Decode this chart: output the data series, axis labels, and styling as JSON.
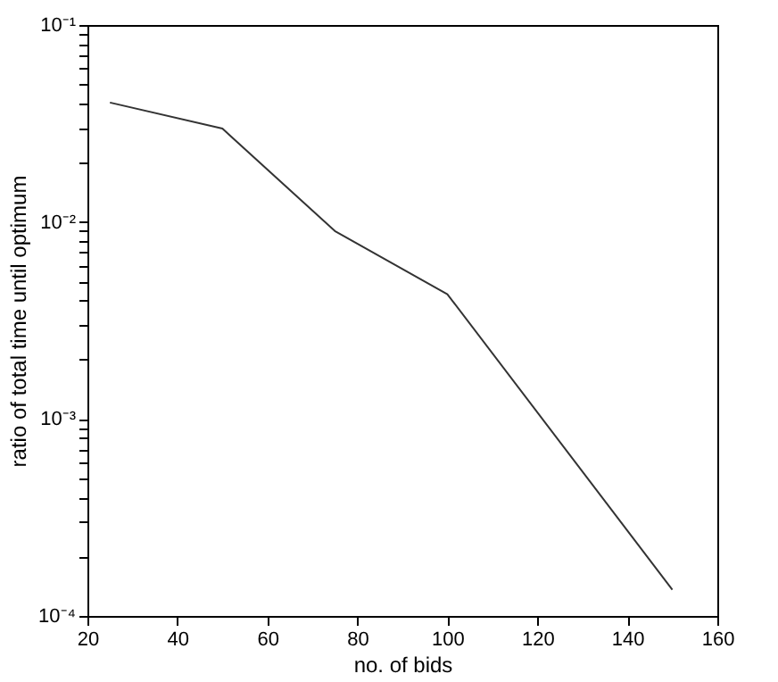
{
  "chart_data": {
    "type": "line",
    "xlabel": "no. of bids",
    "ylabel": "ratio of total time until optimum",
    "log": "y",
    "grid": false,
    "marker": "none",
    "line_style": "solid",
    "x": [
      25,
      50,
      75,
      100,
      150
    ],
    "series": [
      {
        "color": "#333333",
        "values": [
          0.0404,
          0.0298,
          0.009,
          0.0043,
          0.000136
        ]
      }
    ],
    "xlim": [
      20,
      160
    ],
    "xticks": [
      20,
      40,
      60,
      80,
      100,
      120,
      140,
      160
    ],
    "ylim": [
      0.0001,
      0.1
    ],
    "yticks": [
      {
        "value": 0.0001,
        "label": "10⁻⁴"
      },
      {
        "value": 0.0002,
        "label": null
      },
      {
        "value": 0.0003,
        "label": null
      },
      {
        "value": 0.0004,
        "label": null
      },
      {
        "value": 0.0005,
        "label": null
      },
      {
        "value": 0.0006,
        "label": null
      },
      {
        "value": 0.0007,
        "label": null
      },
      {
        "value": 0.0008,
        "label": null
      },
      {
        "value": 0.0009,
        "label": null
      },
      {
        "value": 0.001,
        "label": "10⁻³"
      },
      {
        "value": 0.002,
        "label": null
      },
      {
        "value": 0.003,
        "label": null
      },
      {
        "value": 0.004,
        "label": null
      },
      {
        "value": 0.005,
        "label": null
      },
      {
        "value": 0.006,
        "label": null
      },
      {
        "value": 0.007,
        "label": null
      },
      {
        "value": 0.008,
        "label": null
      },
      {
        "value": 0.009,
        "label": null
      },
      {
        "value": 0.01,
        "label": "10⁻²"
      },
      {
        "value": 0.02,
        "label": null
      },
      {
        "value": 0.03,
        "label": null
      },
      {
        "value": 0.04,
        "label": null
      },
      {
        "value": 0.05,
        "label": null
      },
      {
        "value": 0.06,
        "label": null
      },
      {
        "value": 0.07,
        "label": null
      },
      {
        "value": 0.08,
        "label": null
      },
      {
        "value": 0.09,
        "label": null
      },
      {
        "value": 0.1,
        "label": "10⁻¹"
      }
    ]
  }
}
